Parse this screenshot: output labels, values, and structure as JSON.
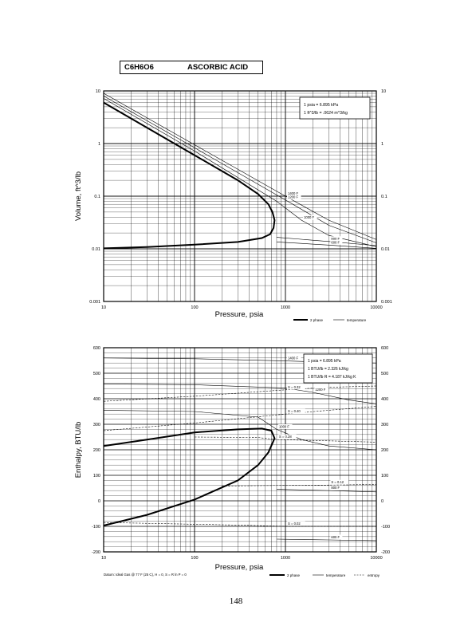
{
  "header": {
    "formula": "C6H6O6",
    "name": "ASCORBIC ACID"
  },
  "page_number": "148",
  "chart_data": [
    {
      "type": "line",
      "xlabel": "Pressure,  psia",
      "ylabel": "Volume, ft^3/lb",
      "xscale": "log",
      "yscale": "log",
      "xlim": [
        10,
        10000
      ],
      "ylim": [
        0.001,
        10
      ],
      "x_ticks": [
        "10",
        "100",
        "1000",
        "10000"
      ],
      "y_ticks": [
        "0.001",
        "0.01",
        "0.1",
        "1",
        "10"
      ],
      "grid": true,
      "conversion_box": [
        "1 psia  =  6.895 kPa",
        "1 ft^3/lb  =  .0624 m^3/kg"
      ],
      "legend": {
        "items": [
          "2 phase",
          "temperature"
        ],
        "placement": "bottom-right"
      },
      "series": [
        {
          "kind": "two_phase",
          "x": [
            10,
            30,
            100,
            300,
            500,
            650,
            720,
            760,
            740,
            680,
            550,
            300,
            100,
            30,
            10
          ],
          "y": [
            6.0,
            2.0,
            0.6,
            0.2,
            0.11,
            0.07,
            0.05,
            0.035,
            0.025,
            0.019,
            0.016,
            0.0135,
            0.012,
            0.0108,
            0.0102
          ]
        },
        {
          "kind": "isotherm",
          "label": "1400 F",
          "x": [
            10,
            100,
            1000,
            3000,
            10000
          ],
          "y": [
            9.0,
            0.95,
            0.1,
            0.035,
            0.015
          ]
        },
        {
          "kind": "isotherm",
          "label": "1200 F",
          "x": [
            10,
            100,
            1000,
            3000,
            10000
          ],
          "y": [
            8.0,
            0.83,
            0.085,
            0.028,
            0.013
          ]
        },
        {
          "kind": "isotherm",
          "label": "1000 F",
          "x": [
            10,
            100,
            800,
            1500,
            3000,
            10000
          ],
          "y": [
            7.2,
            0.72,
            0.08,
            0.035,
            0.018,
            0.011
          ]
        },
        {
          "kind": "isotherm",
          "label": "800 F",
          "x": [
            800,
            3000,
            10000
          ],
          "y": [
            0.0165,
            0.0138,
            0.0115
          ]
        },
        {
          "kind": "isotherm",
          "label": "600 F",
          "x": [
            800,
            3000,
            10000
          ],
          "y": [
            0.0135,
            0.0118,
            0.0102
          ]
        }
      ]
    },
    {
      "type": "line",
      "xlabel": "Pressure,  psia",
      "ylabel": "Enthalpy, BTU/lb",
      "xscale": "log",
      "xlim": [
        10,
        10000
      ],
      "ylim": [
        -200,
        600
      ],
      "x_ticks": [
        "10",
        "100",
        "1000",
        "10000"
      ],
      "y_ticks": [
        "-200",
        "-100",
        "0",
        "100",
        "200",
        "300",
        "400",
        "500",
        "600"
      ],
      "grid": true,
      "conversion_box": [
        "1 psia  =  6.895 kPa",
        "1 BTU/lb  =  2.326 kJ/kg",
        "1 BTU/lb R  =  4.187 kJ/kg K"
      ],
      "legend": {
        "items": [
          "2 phase",
          "temperature",
          "entropy"
        ],
        "placement": "bottom-right"
      },
      "footnote": "Datum: Ideal Gas @ 77 F (25 C),  H = 0,  S = R ln P = 0",
      "series": [
        {
          "kind": "two_phase",
          "x": [
            10,
            30,
            100,
            300,
            500,
            650,
            760,
            700,
            550,
            300,
            100,
            30,
            10
          ],
          "y": [
            -97,
            -55,
            5,
            80,
            140,
            190,
            245,
            275,
            283,
            280,
            268,
            240,
            215
          ]
        },
        {
          "kind": "isotherm",
          "label": "1400 F",
          "x": [
            10,
            100,
            1000,
            3000,
            10000
          ],
          "y": [
            560,
            557,
            548,
            543,
            540
          ]
        },
        {
          "kind": "isotherm",
          "label": "1200 F",
          "x": [
            10,
            100,
            1000,
            2000,
            5000,
            10000
          ],
          "y": [
            458,
            455,
            442,
            425,
            395,
            380
          ]
        },
        {
          "kind": "isotherm",
          "label": "1000 F",
          "x": [
            10,
            100,
            500,
            800,
            1500,
            3000,
            10000
          ],
          "y": [
            355,
            350,
            328,
            280,
            240,
            215,
            200
          ]
        },
        {
          "kind": "isotherm",
          "label": "800 F",
          "x": [
            800,
            3000,
            10000
          ],
          "y": [
            45,
            40,
            35
          ]
        },
        {
          "kind": "isotherm",
          "label": "600 F",
          "x": [
            800,
            3000,
            10000
          ],
          "y": [
            -150,
            -153,
            -156
          ]
        },
        {
          "kind": "entropy",
          "label": "S = 0.32",
          "x": [
            10,
            100,
            1000,
            3000,
            10000
          ],
          "y": [
            390,
            410,
            435,
            445,
            450
          ]
        },
        {
          "kind": "entropy",
          "label": "S = 0.40",
          "x": [
            10,
            100,
            1000,
            3000,
            10000
          ],
          "y": [
            275,
            305,
            340,
            355,
            370
          ]
        },
        {
          "kind": "entropy",
          "label": "S = 0.28",
          "x": [
            100,
            500,
            800,
            3000,
            10000
          ],
          "y": [
            250,
            248,
            240,
            235,
            230
          ]
        },
        {
          "kind": "entropy",
          "label": "S = 0.12",
          "x": [
            200,
            700,
            3000,
            10000
          ],
          "y": [
            58,
            60,
            62,
            64
          ]
        },
        {
          "kind": "entropy",
          "label": "S = 0.02",
          "x": [
            10,
            300,
            1000,
            3000,
            10000
          ],
          "y": [
            -85,
            -95,
            -100,
            -100,
            -100
          ]
        }
      ]
    }
  ]
}
